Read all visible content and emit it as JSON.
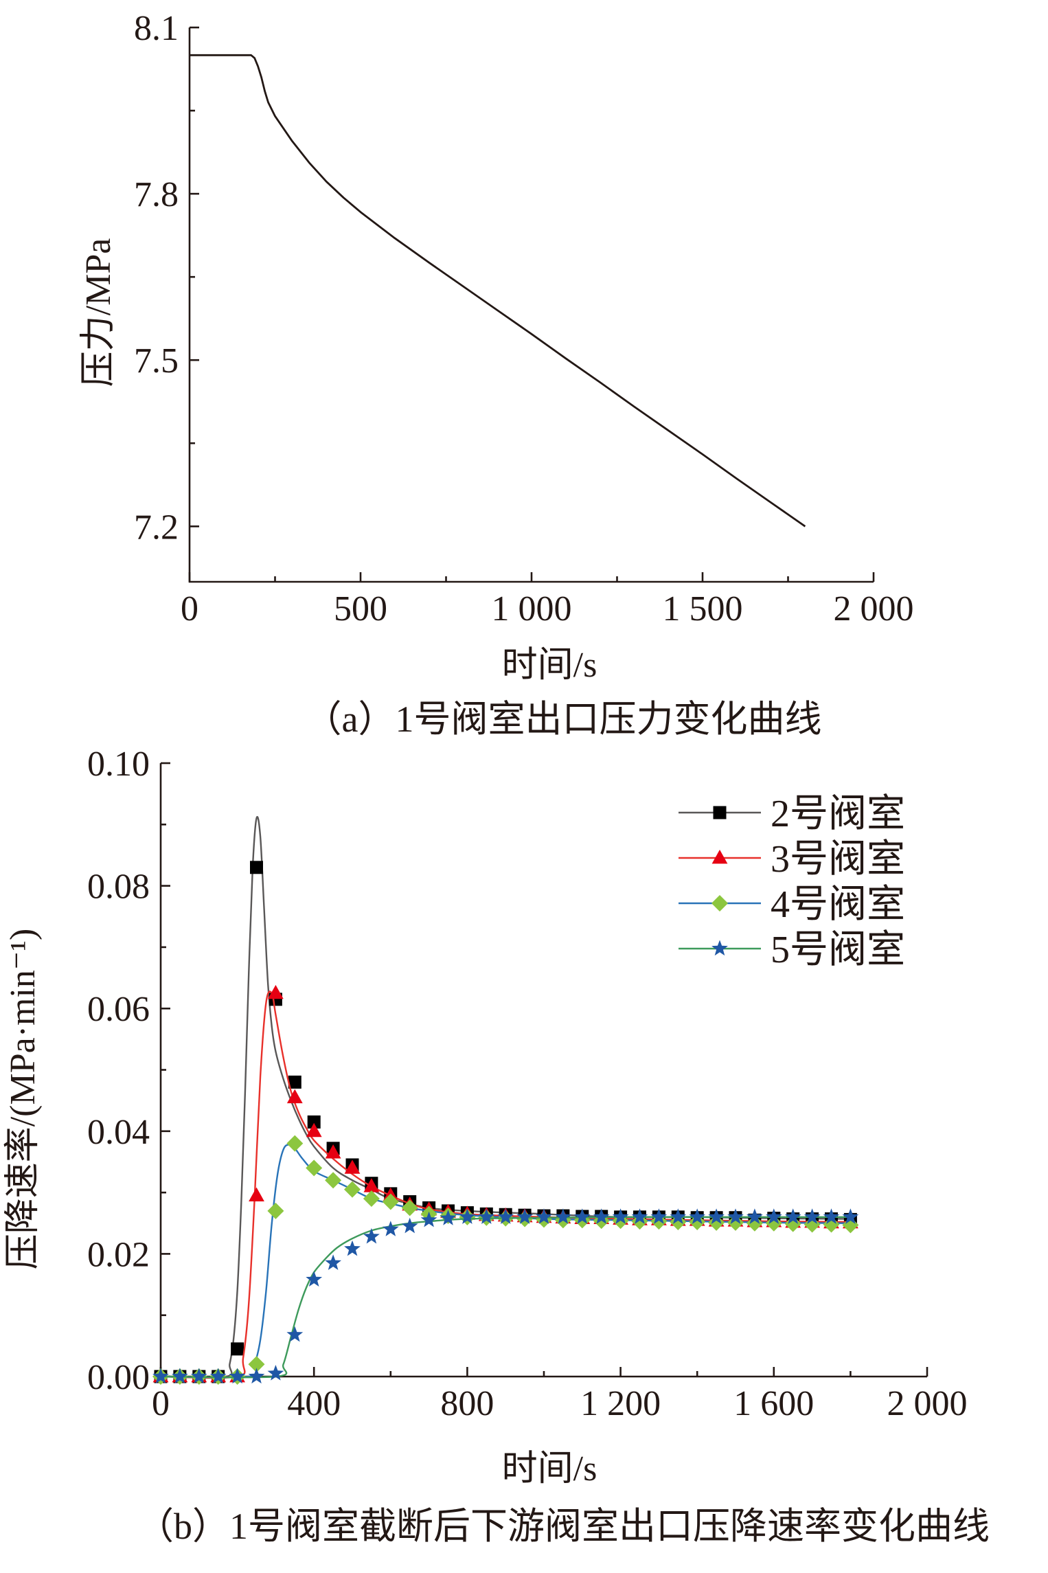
{
  "chart_data": [
    {
      "type": "line",
      "caption": "（a）1号阀室出口压力变化曲线",
      "xlabel": "时间/s",
      "ylabel": "压力/MPa",
      "xlim": [
        0,
        2000
      ],
      "ylim": [
        7.1,
        8.1
      ],
      "xticks": [
        0,
        500,
        1000,
        1500,
        2000
      ],
      "xtick_labels": [
        "0",
        "500",
        "1 000",
        "1 500",
        "2 000"
      ],
      "xminor": [
        250,
        750,
        1250,
        1750
      ],
      "yticks": [
        7.2,
        7.5,
        7.8,
        8.1
      ],
      "ytick_labels": [
        "7.2",
        "7.5",
        "7.8",
        "8.1"
      ],
      "yminor": [
        7.35,
        7.65,
        7.95
      ],
      "grid": false,
      "series": [
        {
          "color": "#231815",
          "x": [
            0,
            180,
            190,
            200,
            210,
            220,
            230,
            250,
            300,
            350,
            400,
            450,
            500,
            600,
            700,
            800,
            900,
            1000,
            1100,
            1200,
            1300,
            1400,
            1500,
            1600,
            1700,
            1800
          ],
          "y": [
            8.05,
            8.05,
            8.045,
            8.03,
            8.01,
            7.985,
            7.965,
            7.94,
            7.895,
            7.856,
            7.822,
            7.793,
            7.767,
            7.72,
            7.676,
            7.633,
            7.59,
            7.547,
            7.503,
            7.46,
            7.416,
            7.373,
            7.33,
            7.286,
            7.243,
            7.2
          ]
        }
      ]
    },
    {
      "type": "line",
      "caption": "（b）1号阀室截断后下游阀室出口压降速率变化曲线",
      "xlabel": "时间/s",
      "ylabel": "压降速率/(MPa·min⁻¹)",
      "xlim": [
        0,
        2000
      ],
      "ylim": [
        0,
        0.1
      ],
      "xticks": [
        0,
        400,
        800,
        1200,
        1600,
        2000
      ],
      "xtick_labels": [
        "0",
        "400",
        "800",
        "1 200",
        "1 600",
        "2 000"
      ],
      "xminor": [
        200,
        600,
        1000,
        1400,
        1800
      ],
      "yticks": [
        0,
        0.02,
        0.04,
        0.06,
        0.08,
        0.1
      ],
      "ytick_labels": [
        "0.00",
        "0.02",
        "0.04",
        "0.06",
        "0.08",
        "0.10"
      ],
      "yminor": [
        0.01,
        0.03,
        0.05,
        0.07,
        0.09
      ],
      "grid": false,
      "legend_position": "top-right",
      "series": [
        {
          "name": "2号阀室",
          "marker": "square",
          "line_color": "#595757",
          "marker_color": "#000000",
          "curve_x": [
            0,
            170,
            180,
            190,
            200,
            210,
            220,
            230,
            240,
            250,
            260,
            270,
            280,
            290,
            300,
            320,
            340,
            360,
            380,
            400,
            450,
            500,
            550,
            600,
            700,
            800,
            1000,
            1200,
            1400,
            1600,
            1800
          ],
          "curve_y": [
            0,
            0,
            0.002,
            0.006,
            0.014,
            0.028,
            0.046,
            0.066,
            0.083,
            0.091,
            0.088,
            0.076,
            0.064,
            0.057,
            0.053,
            0.0485,
            0.045,
            0.042,
            0.0395,
            0.0375,
            0.034,
            0.032,
            0.0305,
            0.029,
            0.0275,
            0.027,
            0.0265,
            0.026,
            0.026,
            0.0258,
            0.0257
          ],
          "marker_x": [
            0,
            50,
            100,
            150,
            200,
            250,
            300,
            350,
            400,
            450,
            500,
            550,
            600,
            650,
            700,
            750,
            800,
            850,
            900,
            950,
            1000,
            1050,
            1100,
            1150,
            1200,
            1250,
            1300,
            1350,
            1400,
            1450,
            1500,
            1550,
            1600,
            1650,
            1700,
            1750,
            1800
          ],
          "marker_y": [
            0,
            0,
            0,
            0,
            0.0045,
            0.083,
            0.0615,
            0.048,
            0.0415,
            0.0372,
            0.0345,
            0.0315,
            0.0298,
            0.0285,
            0.0275,
            0.027,
            0.0267,
            0.0265,
            0.0264,
            0.0263,
            0.0262,
            0.0262,
            0.0261,
            0.0261,
            0.026,
            0.026,
            0.026,
            0.026,
            0.0259,
            0.0259,
            0.0259,
            0.0255,
            0.0258,
            0.0257,
            0.0257,
            0.0257,
            0.0256
          ]
        },
        {
          "name": "3号阀室",
          "marker": "triangle",
          "line_color": "#e8302a",
          "marker_color": "#e60012",
          "curve_x": [
            0,
            200,
            215,
            230,
            245,
            260,
            275,
            290,
            300,
            320,
            340,
            360,
            380,
            400,
            450,
            500,
            550,
            600,
            650,
            700,
            800,
            1000,
            1200,
            1400,
            1600,
            1800
          ],
          "curve_y": [
            0,
            0,
            0.003,
            0.012,
            0.029,
            0.049,
            0.061,
            0.0625,
            0.059,
            0.052,
            0.0465,
            0.043,
            0.0405,
            0.0385,
            0.0355,
            0.033,
            0.031,
            0.0295,
            0.0282,
            0.0273,
            0.0265,
            0.026,
            0.0257,
            0.0255,
            0.0253,
            0.0252
          ],
          "marker_x": [
            0,
            50,
            100,
            150,
            200,
            250,
            300,
            350,
            400,
            450,
            500,
            550,
            600,
            650,
            700,
            750,
            800,
            850,
            900,
            950,
            1000,
            1050,
            1100,
            1150,
            1200,
            1250,
            1300,
            1350,
            1400,
            1450,
            1500,
            1550,
            1600,
            1650,
            1700,
            1750,
            1800
          ],
          "marker_y": [
            0,
            0,
            0,
            0,
            0,
            0.0295,
            0.0625,
            0.0455,
            0.04,
            0.0365,
            0.034,
            0.031,
            0.0295,
            0.028,
            0.0272,
            0.0268,
            0.0265,
            0.0263,
            0.0262,
            0.0261,
            0.026,
            0.0259,
            0.0258,
            0.0258,
            0.0257,
            0.0256,
            0.0256,
            0.0255,
            0.0255,
            0.0254,
            0.0254,
            0.0253,
            0.0253,
            0.0252,
            0.0252,
            0.0251,
            0.0251
          ]
        },
        {
          "name": "4号阀室",
          "marker": "diamond",
          "line_color": "#2873b8",
          "marker_color": "#8cc63f",
          "curve_x": [
            0,
            230,
            245,
            260,
            275,
            290,
            305,
            320,
            335,
            350,
            370,
            400,
            450,
            500,
            550,
            600,
            650,
            700,
            800,
            1000,
            1200,
            1400,
            1600,
            1800
          ],
          "curve_y": [
            0,
            0,
            0.002,
            0.006,
            0.014,
            0.025,
            0.033,
            0.037,
            0.0378,
            0.0372,
            0.0355,
            0.0335,
            0.032,
            0.0305,
            0.029,
            0.0282,
            0.0275,
            0.027,
            0.0263,
            0.0257,
            0.0255,
            0.0253,
            0.0251,
            0.025
          ],
          "marker_x": [
            0,
            50,
            100,
            150,
            200,
            250,
            300,
            350,
            400,
            450,
            500,
            550,
            600,
            650,
            700,
            750,
            800,
            850,
            900,
            950,
            1000,
            1050,
            1100,
            1150,
            1200,
            1250,
            1300,
            1350,
            1400,
            1450,
            1500,
            1550,
            1600,
            1650,
            1700,
            1750,
            1800
          ],
          "marker_y": [
            0,
            0,
            0,
            0,
            0,
            0.002,
            0.027,
            0.038,
            0.034,
            0.032,
            0.0305,
            0.029,
            0.0285,
            0.0275,
            0.0265,
            0.0262,
            0.026,
            0.0259,
            0.0258,
            0.0257,
            0.0256,
            0.0255,
            0.0255,
            0.0254,
            0.0254,
            0.0253,
            0.0253,
            0.0252,
            0.0252,
            0.0251,
            0.0251,
            0.025,
            0.025,
            0.0249,
            0.0248,
            0.0248,
            0.0247
          ]
        },
        {
          "name": "5号阀室",
          "marker": "star",
          "line_color": "#3d9a5b",
          "marker_color": "#1f57a5",
          "curve_x": [
            0,
            300,
            320,
            340,
            360,
            380,
            400,
            430,
            460,
            500,
            550,
            600,
            650,
            700,
            800,
            1000,
            1200,
            1400,
            1600,
            1800
          ],
          "curve_y": [
            0,
            0,
            0.002,
            0.0065,
            0.011,
            0.0145,
            0.017,
            0.0192,
            0.021,
            0.0225,
            0.0238,
            0.0245,
            0.025,
            0.0253,
            0.0257,
            0.0259,
            0.026,
            0.026,
            0.026,
            0.026
          ],
          "marker_x": [
            0,
            50,
            100,
            150,
            200,
            250,
            300,
            350,
            400,
            450,
            500,
            550,
            600,
            650,
            700,
            750,
            800,
            850,
            900,
            950,
            1000,
            1050,
            1100,
            1150,
            1200,
            1250,
            1300,
            1350,
            1400,
            1450,
            1500,
            1550,
            1600,
            1650,
            1700,
            1750,
            1800
          ],
          "marker_y": [
            0,
            0,
            0,
            0,
            0,
            0,
            0.0005,
            0.0068,
            0.0158,
            0.0185,
            0.0208,
            0.0228,
            0.024,
            0.0245,
            0.0255,
            0.0258,
            0.026,
            0.026,
            0.026,
            0.026,
            0.026,
            0.026,
            0.026,
            0.026,
            0.026,
            0.026,
            0.026,
            0.026,
            0.026,
            0.026,
            0.026,
            0.026,
            0.026,
            0.026,
            0.026,
            0.026,
            0.026
          ]
        }
      ]
    }
  ]
}
